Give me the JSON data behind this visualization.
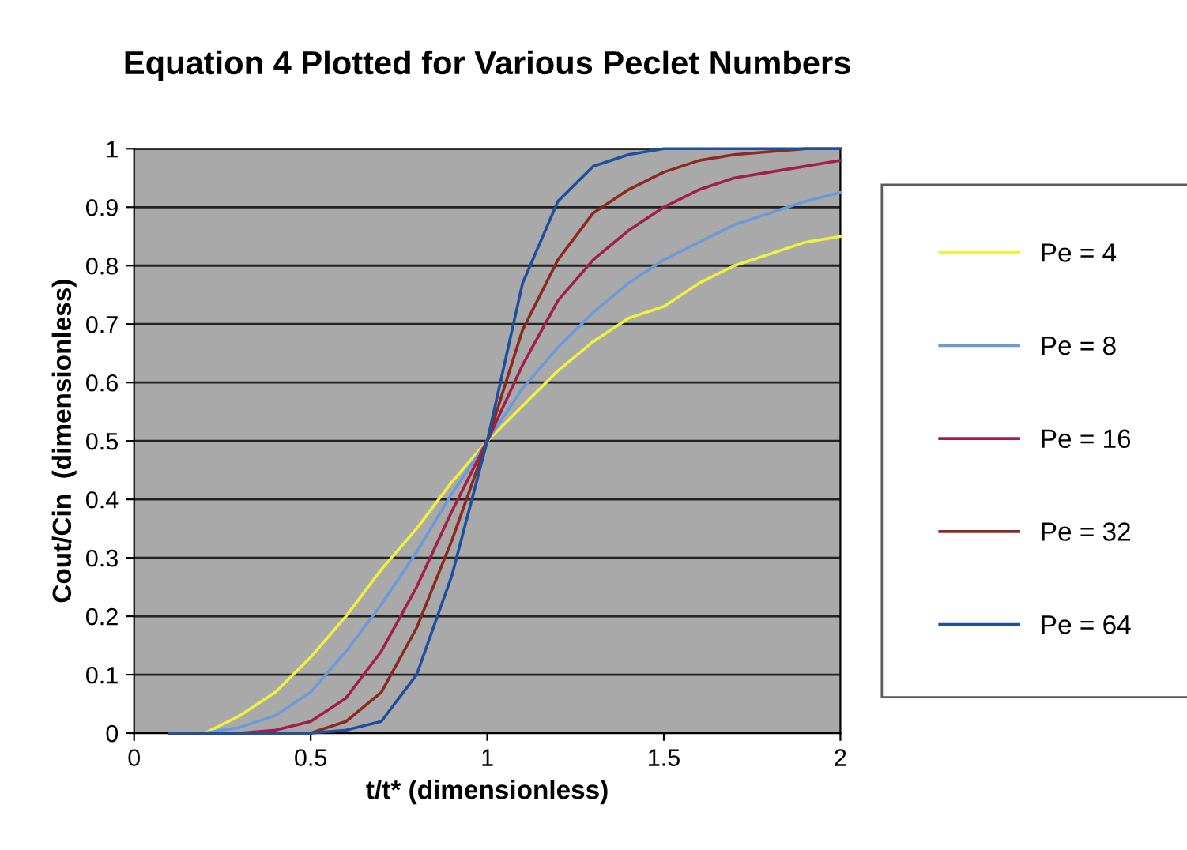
{
  "chart_data": {
    "type": "line",
    "title": "Equation 4 Plotted for Various Peclet Numbers",
    "xlabel": "t/t* (dimensionless)",
    "ylabel": "Cout/Cin  (dimensionless)",
    "x": [
      0.1,
      0.2,
      0.3,
      0.4,
      0.5,
      0.6,
      0.7,
      0.8,
      0.9,
      1.0,
      1.1,
      1.2,
      1.3,
      1.4,
      1.5,
      1.6,
      1.7,
      1.8,
      1.9,
      2.0
    ],
    "series": [
      {
        "name": "Pe = 4",
        "color": "#f0f040",
        "values": [
          0,
          0.0,
          0.03,
          0.07,
          0.13,
          0.2,
          0.28,
          0.35,
          0.43,
          0.5,
          0.56,
          0.62,
          0.67,
          0.71,
          0.73,
          0.77,
          0.8,
          0.82,
          0.84,
          0.85
        ]
      },
      {
        "name": "Pe = 8",
        "color": "#6a9ad8",
        "values": [
          0,
          0,
          0.01,
          0.03,
          0.07,
          0.14,
          0.22,
          0.31,
          0.41,
          0.5,
          0.59,
          0.66,
          0.72,
          0.77,
          0.81,
          0.84,
          0.87,
          0.89,
          0.91,
          0.925
        ]
      },
      {
        "name": "Pe = 16",
        "color": "#a0204a",
        "values": [
          0,
          0,
          0,
          0.005,
          0.02,
          0.06,
          0.14,
          0.25,
          0.38,
          0.5,
          0.63,
          0.74,
          0.81,
          0.86,
          0.9,
          0.93,
          0.95,
          0.96,
          0.97,
          0.98
        ]
      },
      {
        "name": "Pe = 32",
        "color": "#8b2a20",
        "values": [
          0,
          0,
          0,
          0,
          0,
          0.02,
          0.07,
          0.18,
          0.33,
          0.5,
          0.69,
          0.81,
          0.89,
          0.93,
          0.96,
          0.98,
          0.99,
          0.995,
          1.0,
          1.0
        ]
      },
      {
        "name": "Pe = 64",
        "color": "#1f4f9f",
        "values": [
          0,
          0,
          0,
          0,
          0,
          0.005,
          0.02,
          0.1,
          0.27,
          0.5,
          0.77,
          0.91,
          0.97,
          0.99,
          1.0,
          1.0,
          1.0,
          1.0,
          1.0,
          1.0
        ]
      }
    ],
    "xlim": [
      0,
      2
    ],
    "xticks": [
      0,
      0.5,
      1,
      1.5,
      2
    ],
    "ylim": [
      0,
      1
    ],
    "yticks": [
      0,
      0.1,
      0.2,
      0.3,
      0.4,
      0.5,
      0.6,
      0.7,
      0.8,
      0.9,
      1
    ],
    "grid": "y",
    "legend": "right",
    "marker": "none",
    "line_style": "solid"
  }
}
